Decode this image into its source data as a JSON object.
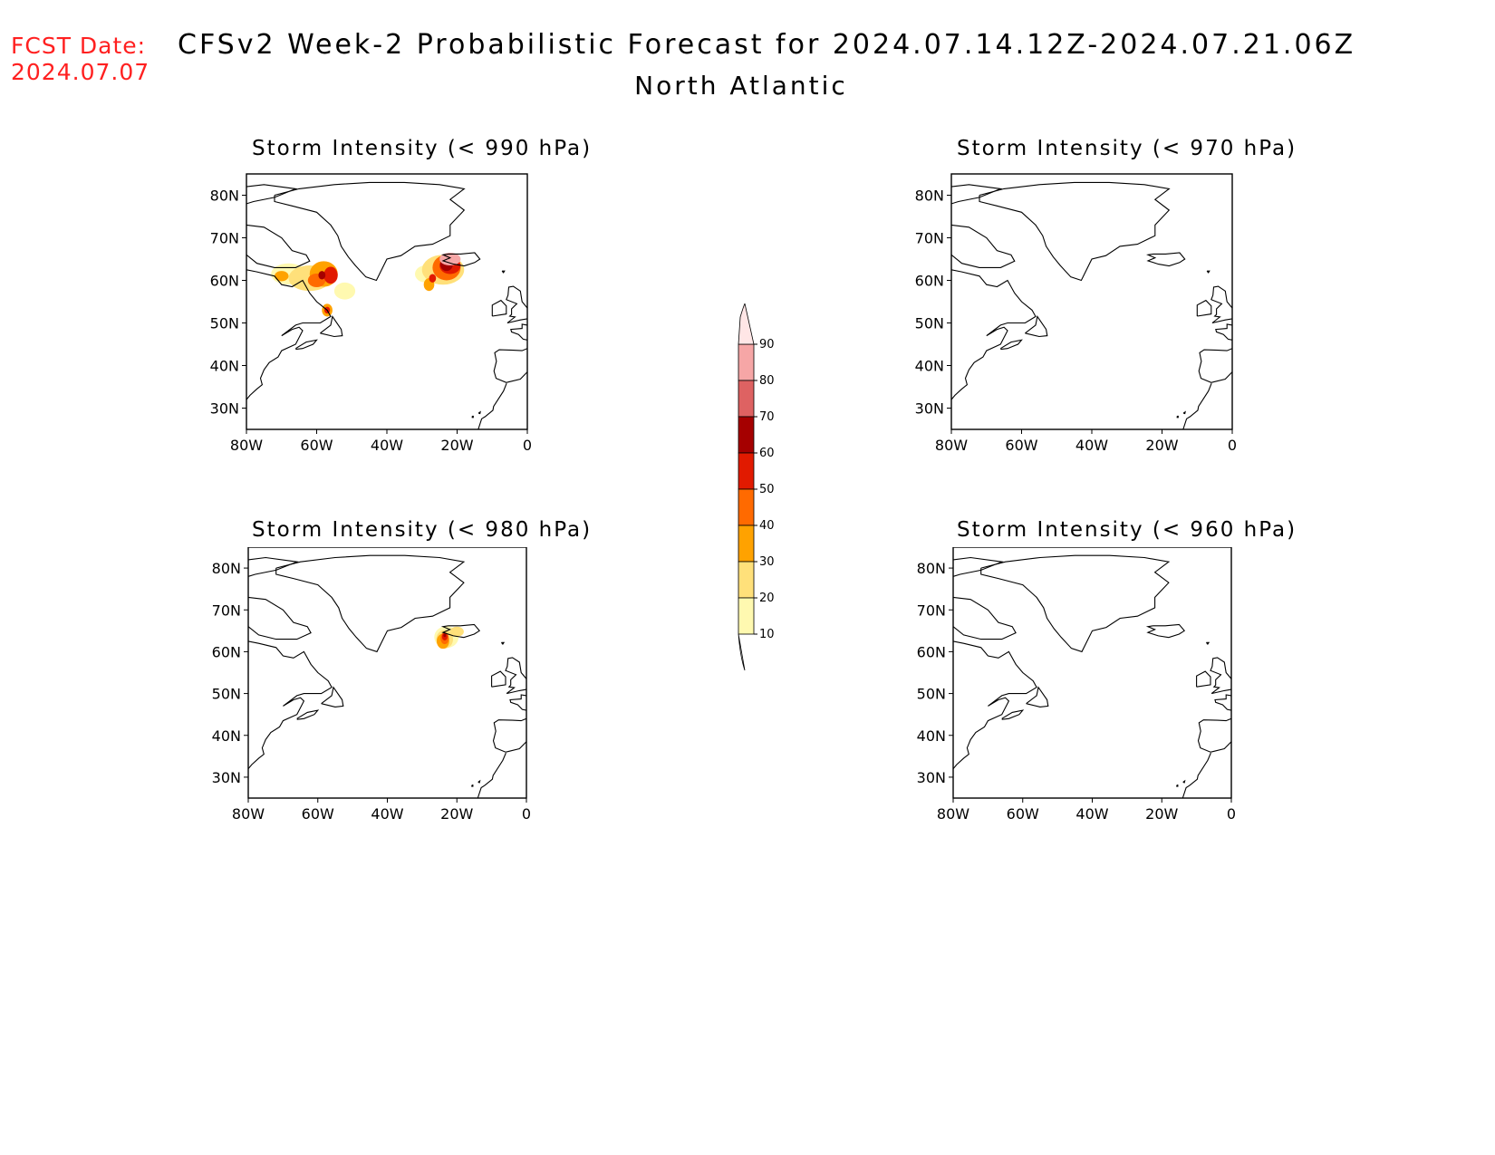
{
  "fcst": {
    "label": "FCST Date:",
    "date": "2024.07.07"
  },
  "title": {
    "line1": "CFSv2 Week-2 Probabilistic Forecast for 2024.07.14.12Z-2024.07.21.06Z",
    "line2": "North Atlantic"
  },
  "axes": {
    "lat_labels": [
      "80N",
      "70N",
      "60N",
      "50N",
      "40N",
      "30N"
    ],
    "lon_labels": [
      "80W",
      "60W",
      "40W",
      "20W",
      "0"
    ]
  },
  "panels": [
    {
      "id": "p990",
      "title": "Storm Intensity (< 990 hPa)"
    },
    {
      "id": "p970",
      "title": "Storm Intensity (< 970 hPa)"
    },
    {
      "id": "p980",
      "title": "Storm Intensity (< 980 hPa)"
    },
    {
      "id": "p960",
      "title": "Storm Intensity (< 960 hPa)"
    }
  ],
  "colorbar": {
    "levels": [
      "10",
      "20",
      "30",
      "40",
      "50",
      "60",
      "70",
      "80",
      "90"
    ],
    "colors": [
      "#fff9b0",
      "#ffe07a",
      "#ffa200",
      "#ff6a00",
      "#e11a00",
      "#a50000",
      "#de6262",
      "#f6a6a6",
      "#ffe6e6"
    ]
  },
  "chart_data": {
    "type": "heatmap",
    "units": "probability (%)",
    "region": "North Atlantic",
    "lon_range": [
      -80,
      0
    ],
    "lat_range": [
      25,
      85
    ],
    "panels": [
      {
        "title": "Storm Intensity (< 990 hPa)",
        "areas": [
          {
            "lon": [
              -72,
              -48
            ],
            "lat": [
              52,
              65
            ],
            "max_prob": 60
          },
          {
            "lon": [
              -32,
              -17
            ],
            "lat": [
              58,
              66
            ],
            "max_prob": 70
          }
        ]
      },
      {
        "title": "Storm Intensity (< 970 hPa)",
        "areas": []
      },
      {
        "title": "Storm Intensity (< 980 hPa)",
        "areas": [
          {
            "lon": [
              -27,
              -18
            ],
            "lat": [
              61,
              66
            ],
            "max_prob": 60
          }
        ]
      },
      {
        "title": "Storm Intensity (< 960 hPa)",
        "areas": []
      }
    ]
  }
}
